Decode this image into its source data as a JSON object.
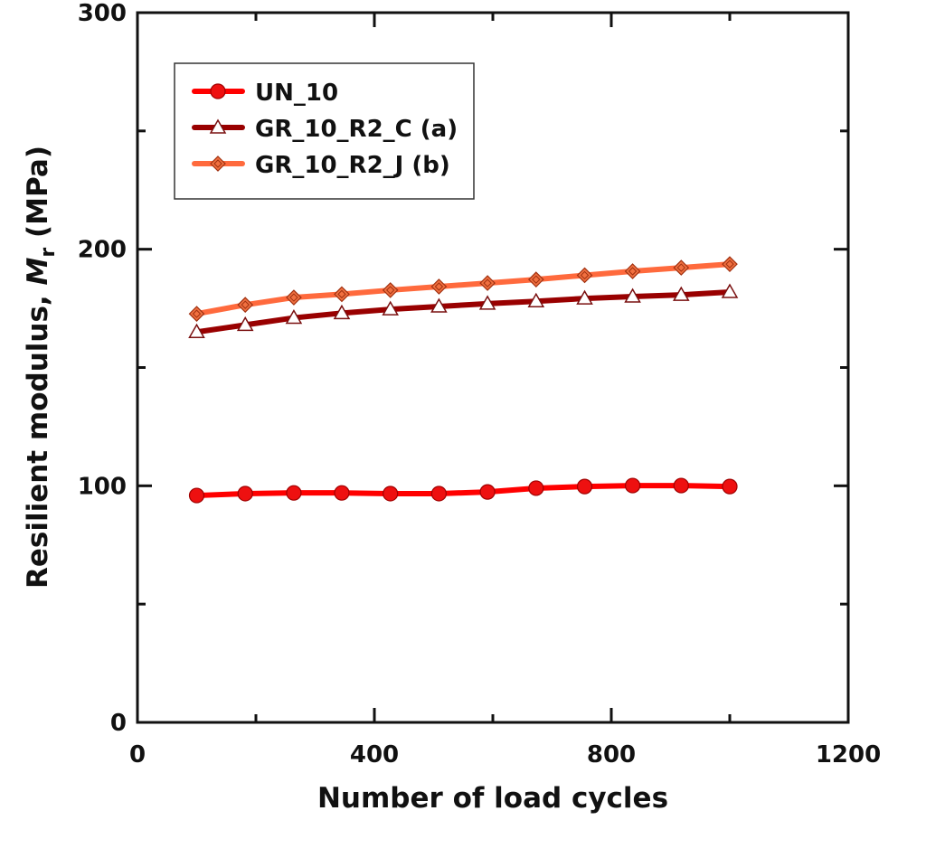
{
  "chart_data": {
    "type": "line",
    "title": "",
    "xlabel": "Number of load cycles",
    "ylabel": {
      "prefix": "Resilient modulus, ",
      "symbol": "M",
      "subscript": "r",
      "unit": " (MPa)"
    },
    "xlim": [
      0,
      1200
    ],
    "ylim": [
      0,
      300
    ],
    "xticks": [
      0,
      400,
      800,
      1200
    ],
    "xminor": [
      200,
      600,
      1000
    ],
    "yticks": [
      0,
      100,
      200,
      300
    ],
    "yminor": [
      50,
      150,
      250
    ],
    "grid": false,
    "legend_position": "top-left",
    "x": [
      100,
      182,
      264,
      345,
      427,
      509,
      591,
      673,
      755,
      836,
      918,
      1000
    ],
    "series": [
      {
        "name": "UN_10",
        "color": "#ff0000",
        "marker": "circle",
        "marker_fill": "#ee1010",
        "marker_stroke": "#a00000",
        "values": [
          95.9,
          96.7,
          97.0,
          97.0,
          96.7,
          96.7,
          97.4,
          99.0,
          99.7,
          100.1,
          100.1,
          99.7
        ]
      },
      {
        "name": "GR_10_R2_C (a)",
        "color": "#990000",
        "marker": "triangle",
        "marker_fill": "#ffffff",
        "marker_stroke": "#7a1010",
        "values": [
          165.0,
          168.0,
          171.0,
          173.0,
          174.6,
          175.8,
          177.0,
          178.0,
          179.2,
          180.0,
          180.7,
          181.9
        ]
      },
      {
        "name": "GR_10_R2_J (b)",
        "color": "#ff6a3d",
        "marker": "diamond",
        "marker_fill": "#f07040",
        "marker_stroke": "#a03010",
        "values": [
          172.7,
          176.5,
          179.6,
          181.0,
          182.7,
          184.2,
          185.7,
          187.2,
          189.0,
          190.7,
          192.2,
          193.7
        ]
      }
    ]
  }
}
